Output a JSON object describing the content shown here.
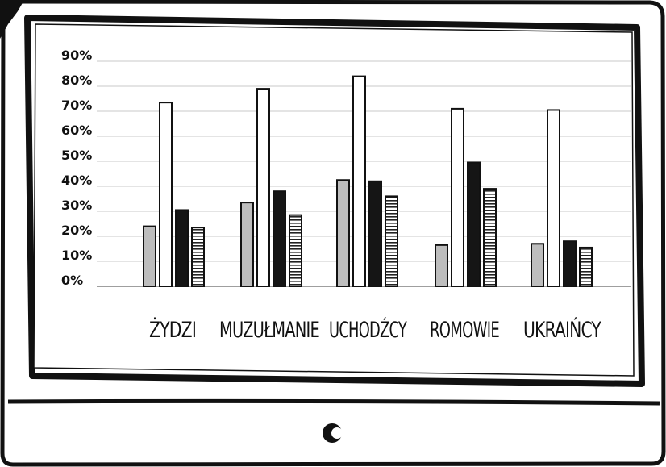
{
  "colors": {
    "frame": "#111111",
    "gray_bar": "#bdbdbd",
    "white_bar": "#ffffff",
    "black_bar": "#151515",
    "striped_bar": "#ffffff",
    "gridline": "#c8c8c8"
  },
  "icons": {
    "button": "crescent-button-icon"
  },
  "chart_data": {
    "type": "bar",
    "title": "",
    "xlabel": "",
    "ylabel": "",
    "ylim": [
      0,
      90
    ],
    "yticks": [
      "0%",
      "10%",
      "20%",
      "30%",
      "40%",
      "50%",
      "60%",
      "70%",
      "80%",
      "90%"
    ],
    "ytick_values": [
      0,
      10,
      20,
      30,
      40,
      50,
      60,
      70,
      80,
      90
    ],
    "grid": true,
    "categories": [
      "ŻYDZI",
      "MUZUŁMANIE",
      "UCHODŹCY",
      "ROMOWIE",
      "UKRAIŃCY"
    ],
    "series": [
      {
        "values": [
          24,
          33.5,
          42.5,
          16.5,
          17
        ],
        "fill": "gray"
      },
      {
        "values": [
          73.5,
          79,
          84,
          71,
          70.5
        ],
        "fill": "white"
      },
      {
        "values": [
          30.5,
          38,
          42,
          49.5,
          18
        ],
        "fill": "black"
      },
      {
        "values": [
          23.5,
          28.5,
          36,
          39,
          15.5
        ],
        "fill": "striped"
      }
    ]
  }
}
